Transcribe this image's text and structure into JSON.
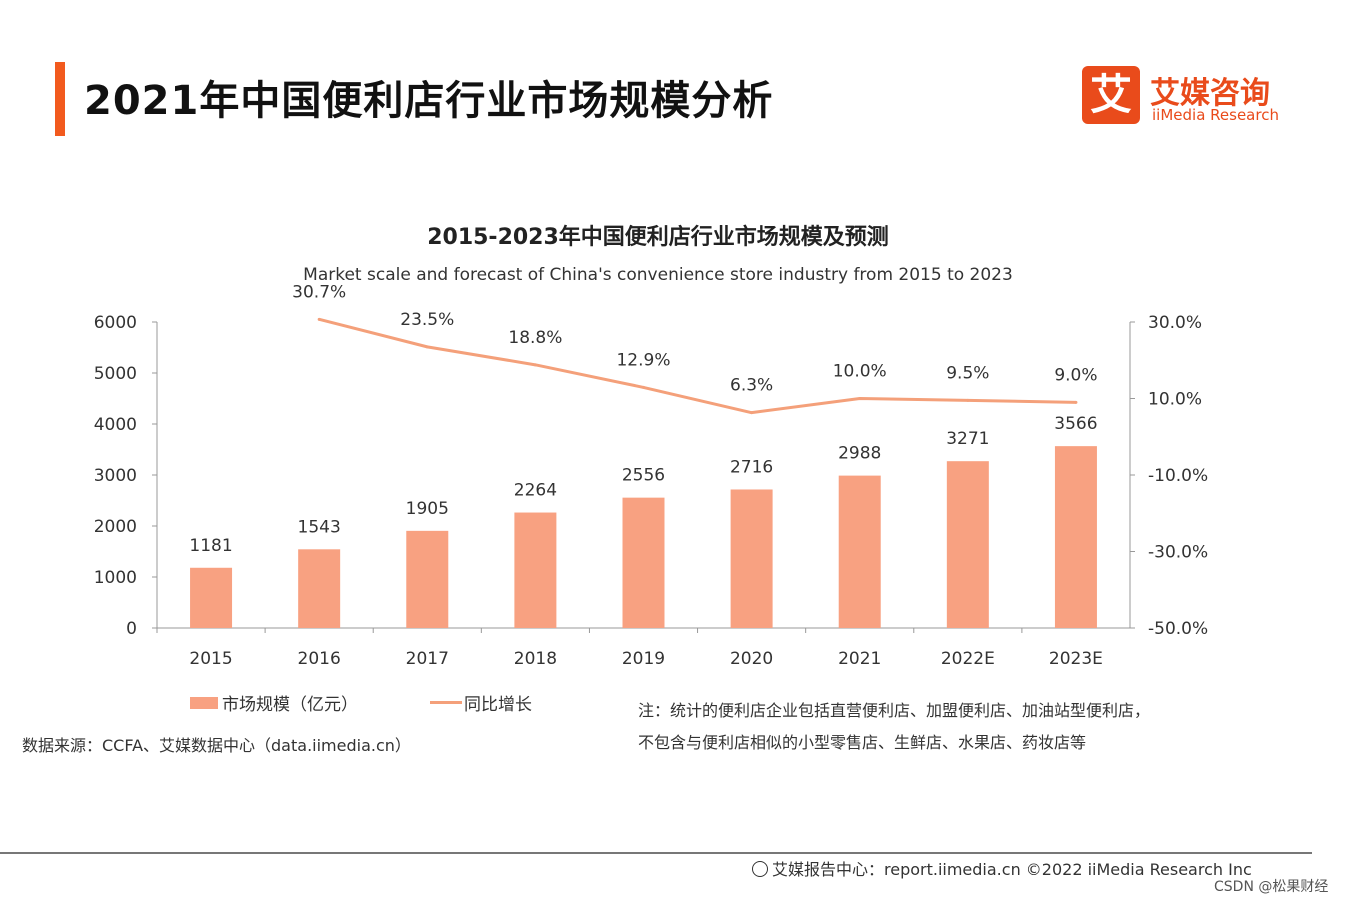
{
  "page": {
    "title": "2021年中国便利店行业市场规模分析",
    "logo": {
      "mark": "艾",
      "name_cn": "艾媒咨询",
      "name_en": "iiMedia Research"
    },
    "source": "数据来源：CCFA、艾媒数据中心（data.iimedia.cn）",
    "note_line1": "注：统计的便利店企业包括直营便利店、加盟便利店、加油站型便利店，",
    "note_line2": "不包含与便利店相似的小型零售店、生鲜店、水果店、药妆店等",
    "footer": "艾媒报告中心：report.iimedia.cn   ©2022  iiMedia Research  Inc",
    "watermark": "CSDN @松果财经"
  },
  "colors": {
    "accent": "#f25a1e",
    "bar": "#f8a181",
    "line": "#f4a07a"
  },
  "chart_data": {
    "type": "bar",
    "title": "2015-2023年中国便利店行业市场规模及预测",
    "subtitle": "Market scale and forecast of China's convenience store industry from 2015 to 2023",
    "categories": [
      "2015",
      "2016",
      "2017",
      "2018",
      "2019",
      "2020",
      "2021",
      "2022E",
      "2023E"
    ],
    "series": [
      {
        "name": "市场规模（亿元）",
        "type": "bar",
        "axis": "left",
        "values": [
          1181,
          1543,
          1905,
          2264,
          2556,
          2716,
          2988,
          3271,
          3566
        ],
        "labels": [
          "1181",
          "1543",
          "1905",
          "2264",
          "2556",
          "2716",
          "2988",
          "3271",
          "3566"
        ]
      },
      {
        "name": "同比增长",
        "type": "line",
        "axis": "right",
        "values": [
          null,
          30.7,
          23.5,
          18.8,
          12.9,
          6.3,
          10.0,
          9.5,
          9.0
        ],
        "labels": [
          "",
          "30.7%",
          "23.5%",
          "18.8%",
          "12.9%",
          "6.3%",
          "10.0%",
          "9.5%",
          "9.0%"
        ]
      }
    ],
    "ylim": [
      0,
      6000
    ],
    "yticks": [
      "0",
      "1000",
      "2000",
      "3000",
      "4000",
      "5000",
      "6000"
    ],
    "y2lim": [
      -50,
      30
    ],
    "y2ticks": [
      "-50.0%",
      "-30.0%",
      "-10.0%",
      "10.0%",
      "30.0%"
    ],
    "legend_position": "bottom-left"
  }
}
